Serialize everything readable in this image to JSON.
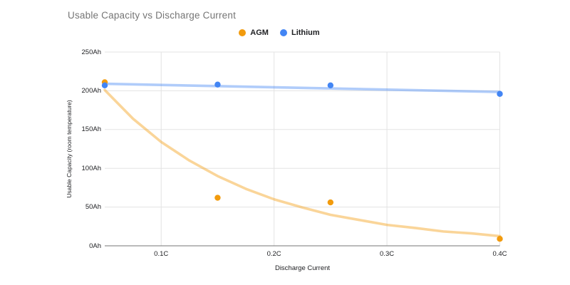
{
  "title": "Usable Capacity vs Discharge Current",
  "legend": {
    "items": [
      {
        "label": "AGM",
        "color": "#F29B0D"
      },
      {
        "label": "Lithium",
        "color": "#4285F4"
      }
    ]
  },
  "colors": {
    "background": "#FFFFFF",
    "title_text": "#757575",
    "axis_text": "#202124",
    "gridline": "#E3E3E3",
    "baseline": "#757575",
    "agm": "#F29B0D",
    "lithium": "#4285F4"
  },
  "chart_data": {
    "type": "scatter",
    "title": "Usable Capacity vs Discharge Current",
    "xlabel": "Discharge Current",
    "ylabel": "Usable Capacity (room temperature)",
    "xlim": [
      0.05,
      0.4
    ],
    "ylim": [
      0,
      250
    ],
    "grid": true,
    "legend_position": "top",
    "x_ticks": [
      {
        "value": 0.1,
        "label": "0.1C"
      },
      {
        "value": 0.2,
        "label": "0.2C"
      },
      {
        "value": 0.3,
        "label": "0.3C"
      },
      {
        "value": 0.4,
        "label": "0.4C"
      }
    ],
    "y_ticks": [
      {
        "value": 0,
        "label": "0Ah"
      },
      {
        "value": 50,
        "label": "50Ah"
      },
      {
        "value": 100,
        "label": "100Ah"
      },
      {
        "value": 150,
        "label": "150Ah"
      },
      {
        "value": 200,
        "label": "200Ah"
      },
      {
        "value": 250,
        "label": "250Ah"
      }
    ],
    "x": [
      0.05,
      0.15,
      0.25,
      0.4
    ],
    "series": [
      {
        "name": "AGM",
        "color": "#F29B0D",
        "values": [
          211,
          62,
          56,
          9
        ],
        "trendline": {
          "type": "exponential",
          "points": [
            [
              0.05,
              201
            ],
            [
              0.075,
              164
            ],
            [
              0.1,
              134
            ],
            [
              0.125,
              110
            ],
            [
              0.15,
              90
            ],
            [
              0.175,
              73.5
            ],
            [
              0.2,
              60
            ],
            [
              0.225,
              49.5
            ],
            [
              0.25,
              40
            ],
            [
              0.275,
              33.5
            ],
            [
              0.3,
              27
            ],
            [
              0.325,
              23
            ],
            [
              0.35,
              18.5
            ],
            [
              0.375,
              16
            ],
            [
              0.4,
              12.5
            ]
          ]
        }
      },
      {
        "name": "Lithium",
        "color": "#4285F4",
        "values": [
          207,
          208,
          207,
          196
        ],
        "trendline": {
          "type": "linear",
          "points": [
            [
              0.05,
              209
            ],
            [
              0.4,
              198.5
            ]
          ]
        }
      }
    ]
  }
}
